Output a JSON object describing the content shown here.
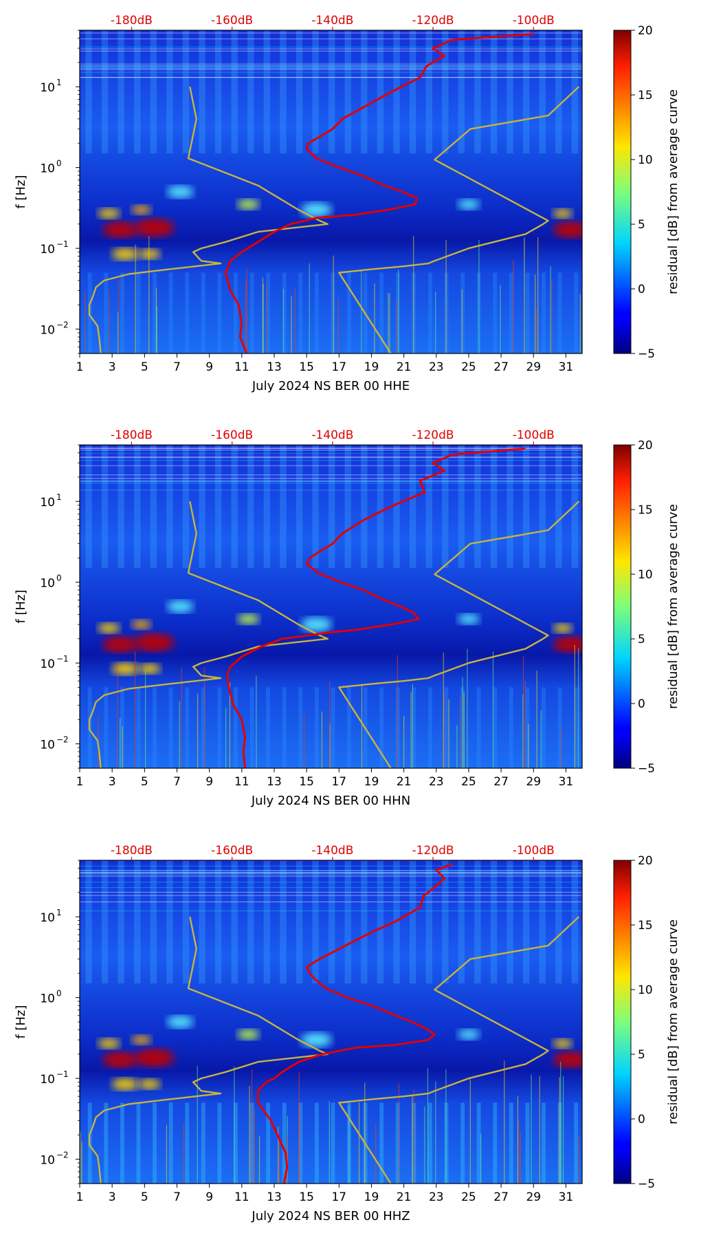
{
  "figure": {
    "colormap": "jet",
    "background": "#ffffff"
  },
  "colorbar": {
    "label": "residual [dB] from average curve",
    "range": [
      -5,
      20
    ],
    "ticks": [
      "20",
      "15",
      "10",
      "5",
      "0",
      "−5"
    ],
    "tick_values": [
      20,
      15,
      10,
      5,
      0,
      -5
    ]
  },
  "chart_data": [
    {
      "type": "heatmap",
      "xlabel": "July 2024 NS BER 00 HHE",
      "ylabel": "f [Hz]",
      "x_range": [
        1,
        32
      ],
      "x_ticks": [
        "1",
        "3",
        "5",
        "7",
        "9",
        "11",
        "13",
        "15",
        "17",
        "19",
        "21",
        "23",
        "25",
        "27",
        "29",
        "31"
      ],
      "y_range_hz": [
        0.005,
        50
      ],
      "y_scale": "log",
      "y_ticks": [
        {
          "base": "10",
          "exp": "1",
          "value": 10
        },
        {
          "base": "10",
          "exp": "0",
          "value": 1
        },
        {
          "base": "10",
          "exp": "−1",
          "value": 0.1
        },
        {
          "base": "10",
          "exp": "−2",
          "value": 0.01
        }
      ],
      "top_axis_color": "#e00000",
      "top_axis_labels": [
        "-180dB",
        "-160dB",
        "-140dB",
        "-120dB",
        "-100dB"
      ],
      "top_axis_day_positions": [
        4.2,
        10.4,
        16.6,
        22.8,
        29.0
      ],
      "series": [
        {
          "name": "Peterson NLNM",
          "color": "#c8b43c",
          "f": [
            10,
            4,
            1.3,
            0.6,
            0.3,
            0.22,
            0.2,
            0.16,
            0.12,
            0.1,
            0.09,
            0.07,
            0.065,
            0.055,
            0.048,
            0.04,
            0.033,
            0.025,
            0.02,
            0.015,
            0.011,
            0.008,
            0.005
          ],
          "day": [
            7.8,
            8.2,
            7.7,
            12.0,
            14.5,
            15.8,
            16.3,
            12.0,
            10.0,
            8.5,
            8.0,
            8.5,
            9.7,
            6.5,
            4.0,
            2.5,
            2.0,
            1.8,
            1.6,
            1.6,
            2.1,
            2.2,
            2.3
          ]
        },
        {
          "name": "Peterson NHNM",
          "color": "#c8b43c",
          "f": [
            10,
            4.4,
            3.0,
            1.25,
            0.22,
            0.2,
            0.15,
            0.1,
            0.07,
            0.065,
            0.06,
            0.055,
            0.05,
            0.005
          ],
          "day": [
            31.8,
            29.9,
            25.1,
            22.9,
            29.9,
            29.6,
            28.5,
            25.0,
            22.9,
            22.5,
            21.0,
            19.0,
            17.0,
            20.2
          ]
        },
        {
          "name": "Average PSD",
          "color": "#e00000",
          "f": [
            45,
            38,
            30,
            24,
            18,
            13,
            9,
            6,
            4,
            3,
            2.4,
            2.0,
            1.7,
            1.3,
            1.0,
            0.8,
            0.6,
            0.5,
            0.42,
            0.35,
            0.3,
            0.26,
            0.24,
            0.2,
            0.16,
            0.12,
            0.09,
            0.07,
            0.05,
            0.03,
            0.02,
            0.012,
            0.008,
            0.005
          ],
          "day": [
            29.0,
            24.0,
            22.8,
            23.5,
            22.4,
            22.0,
            20.4,
            18.8,
            17.2,
            16.6,
            15.8,
            15.1,
            15.0,
            15.6,
            17.0,
            18.4,
            19.8,
            20.9,
            21.8,
            21.7,
            20.0,
            18.0,
            15.7,
            14.0,
            13.0,
            12.0,
            11.0,
            10.3,
            10.0,
            10.3,
            10.8,
            11.0,
            10.9,
            11.3
          ]
        }
      ]
    },
    {
      "type": "heatmap",
      "xlabel": "July 2024 NS BER 00 HHN",
      "ylabel": "f [Hz]",
      "x_range": [
        1,
        32
      ],
      "x_ticks": [
        "1",
        "3",
        "5",
        "7",
        "9",
        "11",
        "13",
        "15",
        "17",
        "19",
        "21",
        "23",
        "25",
        "27",
        "29",
        "31"
      ],
      "y_range_hz": [
        0.005,
        50
      ],
      "y_scale": "log",
      "y_ticks": [
        {
          "base": "10",
          "exp": "1",
          "value": 10
        },
        {
          "base": "10",
          "exp": "0",
          "value": 1
        },
        {
          "base": "10",
          "exp": "−1",
          "value": 0.1
        },
        {
          "base": "10",
          "exp": "−2",
          "value": 0.01
        }
      ],
      "top_axis_color": "#e00000",
      "top_axis_labels": [
        "-180dB",
        "-160dB",
        "-140dB",
        "-120dB",
        "-100dB"
      ],
      "top_axis_day_positions": [
        4.2,
        10.4,
        16.6,
        22.8,
        29.0
      ],
      "series": [
        {
          "name": "Peterson NLNM",
          "color": "#c8b43c",
          "f": [
            10,
            4,
            1.3,
            0.6,
            0.3,
            0.22,
            0.2,
            0.16,
            0.12,
            0.1,
            0.09,
            0.07,
            0.065,
            0.055,
            0.048,
            0.04,
            0.033,
            0.025,
            0.02,
            0.015,
            0.011,
            0.008,
            0.005
          ],
          "day": [
            7.8,
            8.2,
            7.7,
            12.0,
            14.5,
            15.8,
            16.3,
            12.0,
            10.0,
            8.5,
            8.0,
            8.5,
            9.7,
            6.5,
            4.0,
            2.5,
            2.0,
            1.8,
            1.6,
            1.6,
            2.1,
            2.2,
            2.3
          ]
        },
        {
          "name": "Peterson NHNM",
          "color": "#c8b43c",
          "f": [
            10,
            4.4,
            3.0,
            1.25,
            0.22,
            0.2,
            0.15,
            0.1,
            0.07,
            0.065,
            0.06,
            0.055,
            0.05,
            0.005
          ],
          "day": [
            31.8,
            29.9,
            25.1,
            22.9,
            29.9,
            29.6,
            28.5,
            25.0,
            22.9,
            22.5,
            21.0,
            19.0,
            17.0,
            20.2
          ]
        },
        {
          "name": "Average PSD",
          "color": "#e00000",
          "f": [
            45,
            38,
            30,
            24,
            18,
            13,
            9,
            6,
            4,
            3,
            2.4,
            2.0,
            1.7,
            1.3,
            1.0,
            0.8,
            0.6,
            0.5,
            0.42,
            0.35,
            0.3,
            0.26,
            0.24,
            0.2,
            0.16,
            0.12,
            0.09,
            0.07,
            0.05,
            0.03,
            0.02,
            0.012,
            0.008,
            0.005
          ],
          "day": [
            28.5,
            24.0,
            22.8,
            23.5,
            22.0,
            22.3,
            20.4,
            18.6,
            17.2,
            16.6,
            15.8,
            15.2,
            15.0,
            15.7,
            17.1,
            18.5,
            19.8,
            20.8,
            21.6,
            21.9,
            20.2,
            18.2,
            16.5,
            13.5,
            12.2,
            11.0,
            10.3,
            10.1,
            10.2,
            10.5,
            11.0,
            11.2,
            11.1,
            11.2
          ]
        }
      ]
    },
    {
      "type": "heatmap",
      "xlabel": "July 2024 NS BER 00 HHZ",
      "ylabel": "f [Hz]",
      "x_range": [
        1,
        32
      ],
      "x_ticks": [
        "1",
        "3",
        "5",
        "7",
        "9",
        "11",
        "13",
        "15",
        "17",
        "19",
        "21",
        "23",
        "25",
        "27",
        "29",
        "31"
      ],
      "y_range_hz": [
        0.005,
        50
      ],
      "y_scale": "log",
      "y_ticks": [
        {
          "base": "10",
          "exp": "1",
          "value": 10
        },
        {
          "base": "10",
          "exp": "0",
          "value": 1
        },
        {
          "base": "10",
          "exp": "−1",
          "value": 0.1
        },
        {
          "base": "10",
          "exp": "−2",
          "value": 0.01
        }
      ],
      "top_axis_color": "#e00000",
      "top_axis_labels": [
        "-180dB",
        "-160dB",
        "-140dB",
        "-120dB",
        "-100dB"
      ],
      "top_axis_day_positions": [
        4.2,
        10.4,
        16.6,
        22.8,
        29.0
      ],
      "series": [
        {
          "name": "Peterson NLNM",
          "color": "#c8b43c",
          "f": [
            10,
            4,
            1.3,
            0.6,
            0.3,
            0.22,
            0.2,
            0.16,
            0.12,
            0.1,
            0.09,
            0.07,
            0.065,
            0.055,
            0.048,
            0.04,
            0.033,
            0.025,
            0.02,
            0.015,
            0.011,
            0.008,
            0.005
          ],
          "day": [
            7.8,
            8.2,
            7.7,
            12.0,
            14.5,
            15.8,
            16.3,
            12.0,
            10.0,
            8.5,
            8.0,
            8.5,
            9.7,
            6.5,
            4.0,
            2.5,
            2.0,
            1.8,
            1.6,
            1.6,
            2.1,
            2.2,
            2.3
          ]
        },
        {
          "name": "Peterson NHNM",
          "color": "#c8b43c",
          "f": [
            10,
            4.4,
            3.0,
            1.25,
            0.22,
            0.2,
            0.15,
            0.1,
            0.07,
            0.065,
            0.06,
            0.055,
            0.05,
            0.005
          ],
          "day": [
            31.8,
            29.9,
            25.1,
            22.9,
            29.9,
            29.6,
            28.5,
            25.0,
            22.9,
            22.5,
            21.0,
            19.0,
            17.0,
            20.2
          ]
        },
        {
          "name": "Average PSD",
          "color": "#e00000",
          "f": [
            45,
            38,
            30,
            24,
            18,
            13,
            9,
            6,
            4,
            3,
            2.4,
            2.0,
            1.7,
            1.3,
            1.0,
            0.8,
            0.6,
            0.5,
            0.42,
            0.35,
            0.3,
            0.26,
            0.24,
            0.2,
            0.16,
            0.12,
            0.1,
            0.09,
            0.07,
            0.05,
            0.03,
            0.02,
            0.012,
            0.008,
            0.005
          ],
          "day": [
            24.0,
            23.0,
            23.5,
            23.0,
            22.2,
            22.0,
            20.6,
            18.7,
            17.0,
            15.8,
            15.0,
            15.2,
            15.5,
            16.2,
            17.5,
            19.0,
            20.5,
            21.5,
            22.3,
            22.9,
            22.5,
            20.5,
            18.0,
            16.0,
            14.5,
            13.5,
            13.0,
            12.5,
            12.0,
            12.0,
            12.8,
            13.2,
            13.7,
            13.8,
            13.6
          ]
        }
      ]
    }
  ]
}
